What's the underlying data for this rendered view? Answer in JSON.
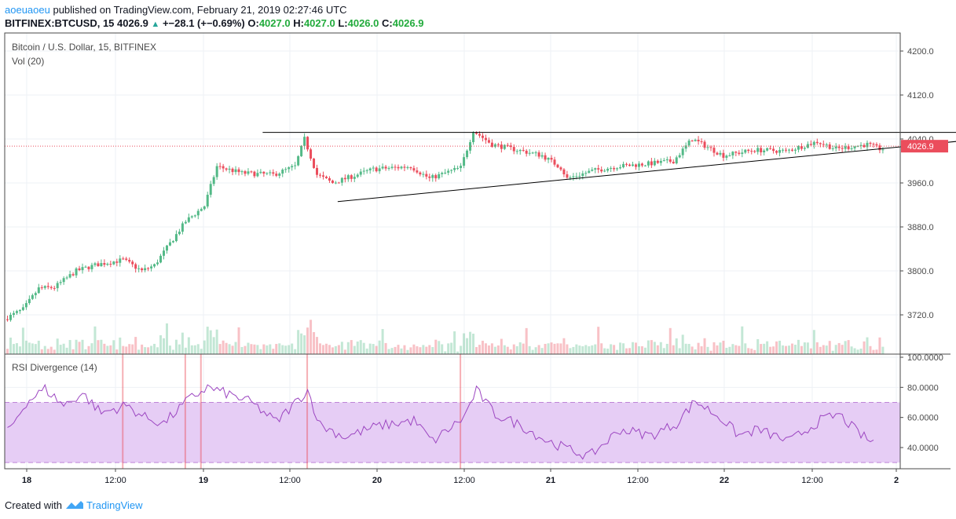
{
  "header": {
    "author": "aoeuaoeu",
    "published_text": "published on TradingView.com, February 21, 2019 02:27:46 UTC",
    "symbol": "BITFINEX:BTCUSD, 15",
    "last": "4026.9",
    "change": "+−28.1 (+−0.69%)",
    "o_label": "O:",
    "o_value": "4027.0",
    "h_label": "H:",
    "h_value": "4027.0",
    "l_label": "L:",
    "l_value": "4026.0",
    "c_label": "C:",
    "c_value": "4026.9"
  },
  "main_pane": {
    "title": "Bitcoin / U.S. Dollar, 15, BITFINEX",
    "vol_label": "Vol (20)"
  },
  "rsi_pane": {
    "title": "RSI Divergence (14)"
  },
  "footer": {
    "created_with": "Created with",
    "brand": "TradingView"
  },
  "colors": {
    "up": "#53b987",
    "down": "#eb4d5c",
    "rsi_line": "#9c46c1",
    "rsi_band": "#e6cdf5",
    "price_tag": "#eb4d5c",
    "grid": "#eef1f5"
  },
  "chart_data": [
    {
      "type": "candlestick",
      "title": "Bitcoin / U.S. Dollar, 15, BITFINEX",
      "x_ticks": [
        "18",
        "12:00",
        "19",
        "12:00",
        "20",
        "12:00",
        "21",
        "12:00",
        "22",
        "12:00",
        "2"
      ],
      "y_ticks": [
        "4200.0",
        "4120.0",
        "4040.0",
        "3960.0",
        "3880.0",
        "3800.0",
        "3720.0"
      ],
      "ylim": [
        3660,
        4235
      ],
      "last_price": "4026.9",
      "price_waypoints": [
        [
          0,
          3712
        ],
        [
          6,
          3730
        ],
        [
          11,
          3768
        ],
        [
          16,
          3770
        ],
        [
          23,
          3800
        ],
        [
          30,
          3812
        ],
        [
          38,
          3820
        ],
        [
          44,
          3800
        ],
        [
          48,
          3810
        ],
        [
          58,
          3890
        ],
        [
          64,
          3918
        ],
        [
          68,
          3990
        ],
        [
          76,
          3978
        ],
        [
          86,
          3975
        ],
        [
          93,
          3990
        ],
        [
          96,
          4040
        ],
        [
          100,
          3975
        ],
        [
          105,
          3960
        ],
        [
          118,
          3985
        ],
        [
          130,
          3990
        ],
        [
          136,
          3968
        ],
        [
          146,
          3988
        ],
        [
          150,
          4055
        ],
        [
          156,
          4030
        ],
        [
          164,
          4020
        ],
        [
          172,
          4010
        ],
        [
          178,
          3988
        ],
        [
          180,
          3968
        ],
        [
          188,
          3982
        ],
        [
          196,
          3990
        ],
        [
          206,
          3995
        ],
        [
          214,
          4000
        ],
        [
          220,
          4040
        ],
        [
          230,
          4010
        ],
        [
          240,
          4020
        ],
        [
          250,
          4018
        ],
        [
          260,
          4035
        ],
        [
          266,
          4022
        ],
        [
          276,
          4030
        ],
        [
          280,
          4022
        ]
      ],
      "volume_note": "Vol (20) histogram, green = up bars, red = down bars",
      "trendlines": [
        {
          "name": "resistance",
          "from": [
            82,
            4052
          ],
          "to": [
            312,
            4052
          ]
        },
        {
          "name": "ascending support",
          "from": [
            106,
            3926
          ],
          "to": [
            312,
            4040
          ]
        }
      ]
    },
    {
      "type": "line",
      "title": "RSI Divergence (14)",
      "y_ticks": [
        "100.0000",
        "80.0000",
        "60.0000",
        "40.0000"
      ],
      "ylim": [
        27,
        100
      ],
      "band": [
        30,
        70
      ],
      "rsi_waypoints": [
        [
          0,
          50
        ],
        [
          6,
          70
        ],
        [
          12,
          79
        ],
        [
          18,
          68
        ],
        [
          24,
          76
        ],
        [
          30,
          63
        ],
        [
          38,
          68
        ],
        [
          44,
          60
        ],
        [
          50,
          56
        ],
        [
          58,
          72
        ],
        [
          64,
          80
        ],
        [
          70,
          76
        ],
        [
          78,
          70
        ],
        [
          86,
          57
        ],
        [
          96,
          78
        ],
        [
          100,
          55
        ],
        [
          108,
          47
        ],
        [
          118,
          54
        ],
        [
          130,
          58
        ],
        [
          136,
          44
        ],
        [
          146,
          60
        ],
        [
          150,
          78
        ],
        [
          156,
          62
        ],
        [
          164,
          55
        ],
        [
          172,
          45
        ],
        [
          178,
          40
        ],
        [
          186,
          34
        ],
        [
          196,
          52
        ],
        [
          206,
          48
        ],
        [
          214,
          56
        ],
        [
          220,
          71
        ],
        [
          228,
          60
        ],
        [
          234,
          48
        ],
        [
          240,
          52
        ],
        [
          250,
          44
        ],
        [
          260,
          58
        ],
        [
          266,
          62
        ],
        [
          272,
          50
        ],
        [
          276,
          44
        ]
      ],
      "divergence_markers_at_bar": [
        37,
        57,
        62,
        96,
        145
      ]
    }
  ]
}
